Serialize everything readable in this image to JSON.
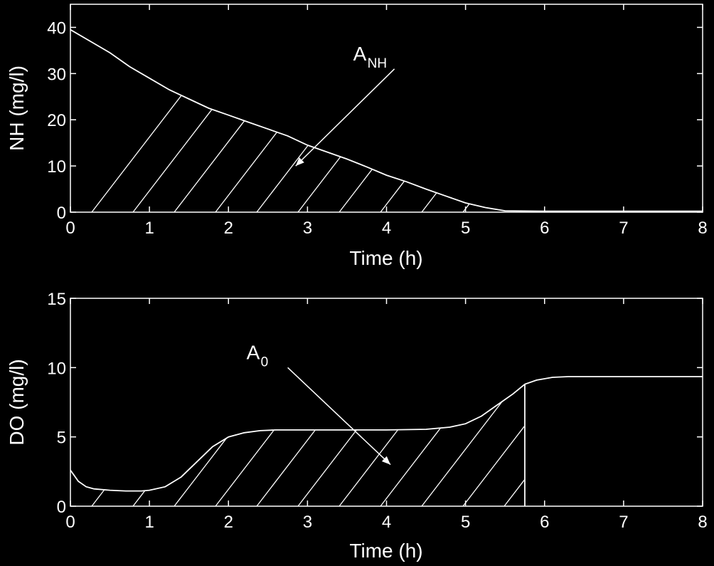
{
  "colors": {
    "background": "#000000",
    "foreground": "#ffffff"
  },
  "chart_data": [
    {
      "type": "line",
      "xlabel": "Time (h)",
      "ylabel": "NH (mg/l)",
      "xlim": [
        0,
        8
      ],
      "ylim": [
        0,
        45
      ],
      "xticks": [
        "0",
        "1",
        "2",
        "3",
        "4",
        "5",
        "6",
        "7",
        "8"
      ],
      "yticks": [
        "0",
        "10",
        "20",
        "30",
        "40"
      ],
      "grid": false,
      "annotation": {
        "main": "A",
        "sub": "NH",
        "x": 4.1,
        "y": 31,
        "arrow_to": [
          2.85,
          10
        ]
      },
      "shaded_area": {
        "from_x": 0,
        "to_x": 5.5,
        "hatch": "diagonal"
      },
      "series": [
        {
          "x": [
            0,
            0.25,
            0.5,
            0.75,
            1,
            1.25,
            1.5,
            1.75,
            2,
            2.25,
            2.5,
            2.75,
            3,
            3.25,
            3.5,
            3.75,
            4,
            4.25,
            4.5,
            4.75,
            5,
            5.25,
            5.5,
            6,
            7,
            8
          ],
          "y": [
            39.5,
            37,
            34.5,
            31.5,
            29,
            26.5,
            24.5,
            22.5,
            21,
            19.5,
            18,
            16.5,
            14.5,
            13,
            11.5,
            9.8,
            8,
            6.6,
            5,
            3.5,
            2,
            1,
            0.3,
            0.2,
            0.2,
            0.2
          ]
        }
      ]
    },
    {
      "type": "line",
      "xlabel": "Time (h)",
      "ylabel": "DO (mg/l)",
      "xlim": [
        0,
        8
      ],
      "ylim": [
        0,
        15
      ],
      "xticks": [
        "0",
        "1",
        "2",
        "3",
        "4",
        "5",
        "6",
        "7",
        "8"
      ],
      "yticks": [
        "0",
        "5",
        "10",
        "15"
      ],
      "grid": false,
      "annotation": {
        "main": "A",
        "sub": "0",
        "x": 2.75,
        "y": 10,
        "arrow_to": [
          4.05,
          3
        ]
      },
      "shaded_area": {
        "from_x": 0,
        "to_x": 5.75,
        "hatch": "diagonal"
      },
      "series": [
        {
          "x": [
            0,
            0.05,
            0.1,
            0.2,
            0.3,
            0.5,
            0.7,
            0.9,
            1,
            1.2,
            1.4,
            1.6,
            1.8,
            2,
            2.2,
            2.4,
            2.6,
            3,
            3.5,
            4,
            4.5,
            4.8,
            5,
            5.2,
            5.4,
            5.6,
            5.75,
            5.9,
            6.1,
            6.3,
            7,
            8
          ],
          "y": [
            2.6,
            2.2,
            1.8,
            1.4,
            1.25,
            1.15,
            1.1,
            1.1,
            1.15,
            1.4,
            2.1,
            3.2,
            4.3,
            5.0,
            5.3,
            5.45,
            5.5,
            5.5,
            5.5,
            5.5,
            5.55,
            5.7,
            5.95,
            6.5,
            7.3,
            8.1,
            8.8,
            9.1,
            9.3,
            9.35,
            9.35,
            9.35
          ]
        }
      ]
    }
  ]
}
